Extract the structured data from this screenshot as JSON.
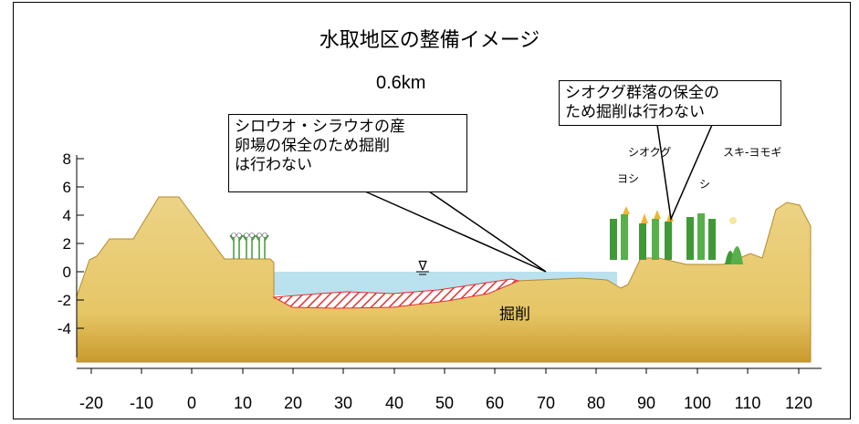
{
  "title": "水取地区の整備イメージ",
  "distance_label": "0.6km",
  "callouts": {
    "left_lines": [
      "シロウオ・シラウオの産",
      "卵場の保全のため掘削",
      "は行わない"
    ],
    "right_lines": [
      "シオクグ群落の保全の",
      "ため掘削は行わない"
    ]
  },
  "labels": {
    "excavation": "掘削",
    "plant_shiokugu": "シオクグ",
    "plant_yoshi_left": "ヨシ",
    "plant_yoshi_right": "シ",
    "plant_hosobatousyukiyomogi": "スキ-ヨモギ",
    "water_level_symbol": "∇"
  },
  "axes": {
    "y_ticks": [
      "8",
      "6",
      "4",
      "2",
      "0",
      "-2",
      "-4"
    ],
    "x_ticks": [
      "-20",
      "-10",
      "0",
      "10",
      "20",
      "30",
      "40",
      "50",
      "60",
      "70",
      "80",
      "90",
      "100",
      "110",
      "120"
    ]
  },
  "colors": {
    "ground": "#e7c96f",
    "ground_dark": "#c99a2e",
    "water": "#b9e1ee",
    "excavation_hatch": "#e53030",
    "plant_green": "#3f9a35"
  },
  "icons": [
    "water-level-icon",
    "reed-icon",
    "sedge-icon",
    "mugwort-icon"
  ]
}
